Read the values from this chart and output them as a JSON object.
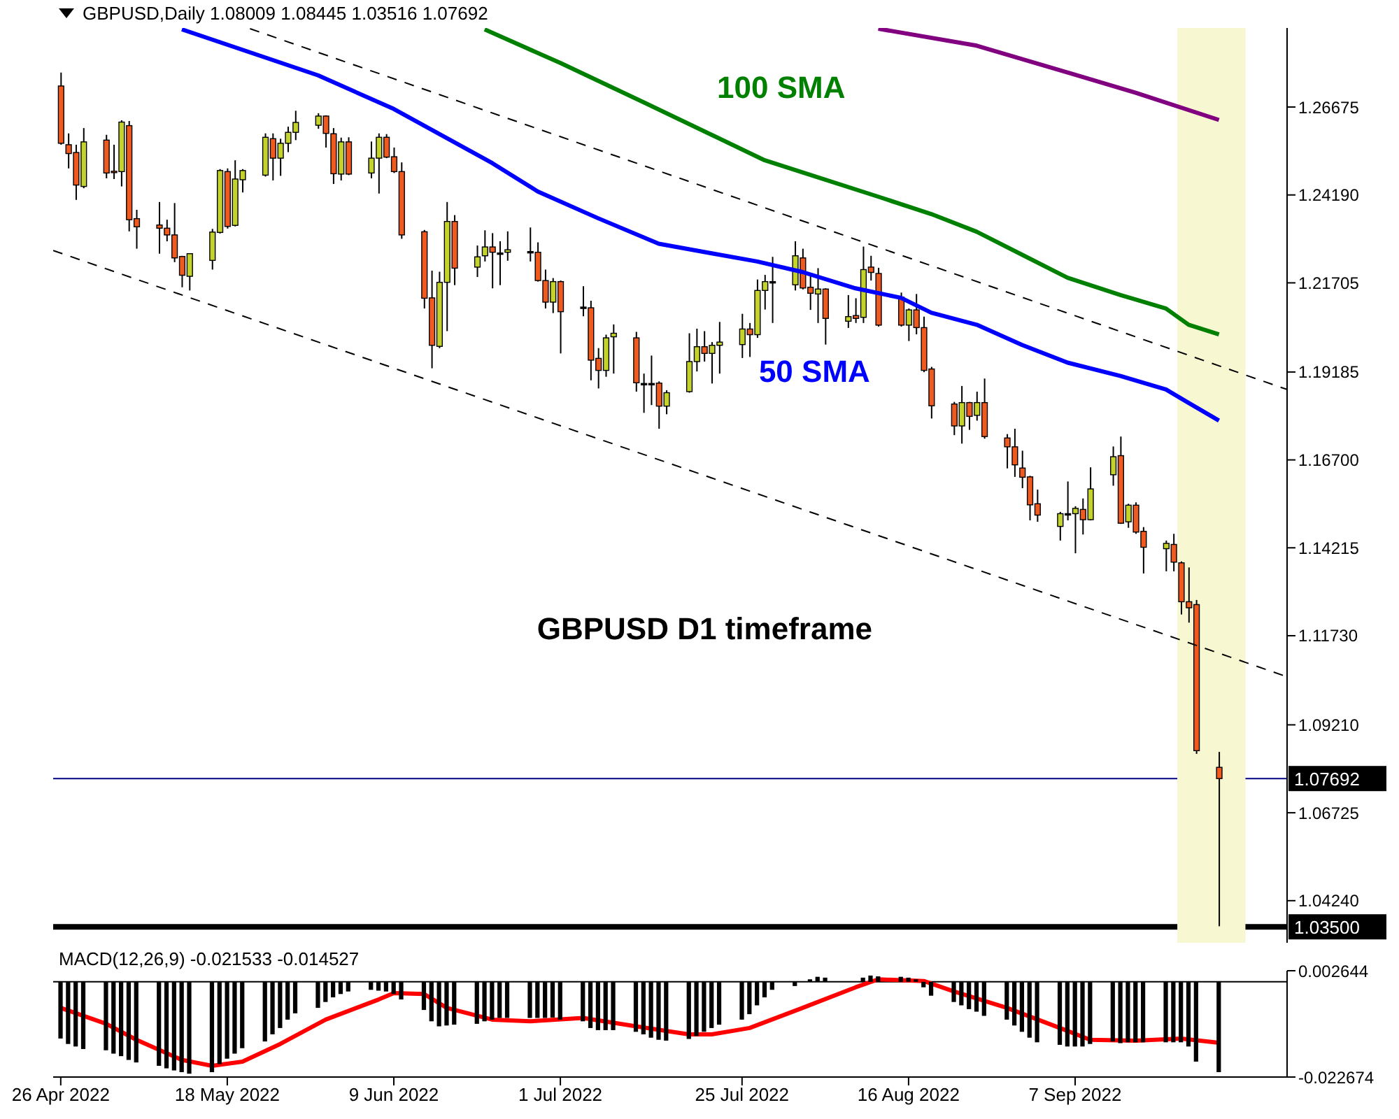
{
  "chart_data": [
    {
      "type": "candlestick",
      "title": "GBPUSD,Daily 1.08009 1.08445 1.03516 1.07692",
      "annotations": [
        "GBPUSD D1 timeframe"
      ],
      "x": [
        "2022-04-26",
        "2022-04-27",
        "2022-04-28",
        "2022-04-29",
        "2022-05-02",
        "2022-05-03",
        "2022-05-04",
        "2022-05-05",
        "2022-05-06",
        "2022-05-09",
        "2022-05-10",
        "2022-05-11",
        "2022-05-12",
        "2022-05-13",
        "2022-05-16",
        "2022-05-17",
        "2022-05-18",
        "2022-05-19",
        "2022-05-20",
        "2022-05-23",
        "2022-05-24",
        "2022-05-25",
        "2022-05-26",
        "2022-05-27",
        "2022-05-30",
        "2022-05-31",
        "2022-06-01",
        "2022-06-02",
        "2022-06-03",
        "2022-06-06",
        "2022-06-07",
        "2022-06-08",
        "2022-06-09",
        "2022-06-10",
        "2022-06-13",
        "2022-06-14",
        "2022-06-15",
        "2022-06-16",
        "2022-06-17",
        "2022-06-20",
        "2022-06-21",
        "2022-06-22",
        "2022-06-23",
        "2022-06-24",
        "2022-06-27",
        "2022-06-28",
        "2022-06-29",
        "2022-06-30",
        "2022-07-01",
        "2022-07-04",
        "2022-07-05",
        "2022-07-06",
        "2022-07-07",
        "2022-07-08",
        "2022-07-11",
        "2022-07-12",
        "2022-07-13",
        "2022-07-14",
        "2022-07-15",
        "2022-07-18",
        "2022-07-19",
        "2022-07-20",
        "2022-07-21",
        "2022-07-22",
        "2022-07-25",
        "2022-07-26",
        "2022-07-27",
        "2022-07-28",
        "2022-07-29",
        "2022-08-01",
        "2022-08-02",
        "2022-08-03",
        "2022-08-04",
        "2022-08-05",
        "2022-08-08",
        "2022-08-09",
        "2022-08-10",
        "2022-08-11",
        "2022-08-12",
        "2022-08-15",
        "2022-08-16",
        "2022-08-17",
        "2022-08-18",
        "2022-08-19",
        "2022-08-22",
        "2022-08-23",
        "2022-08-24",
        "2022-08-25",
        "2022-08-26",
        "2022-08-29",
        "2022-08-30",
        "2022-08-31",
        "2022-09-01",
        "2022-09-02",
        "2022-09-05",
        "2022-09-06",
        "2022-09-07",
        "2022-09-08",
        "2022-09-09",
        "2022-09-12",
        "2022-09-13",
        "2022-09-14",
        "2022-09-15",
        "2022-09-16",
        "2022-09-19",
        "2022-09-20",
        "2022-09-21",
        "2022-09-22",
        "2022-09-23",
        "2022-09-26"
      ],
      "ohlc": [
        [
          1.2727,
          1.2765,
          1.2561,
          1.2565
        ],
        [
          1.2561,
          1.2593,
          1.2494,
          1.2536
        ],
        [
          1.2539,
          1.2561,
          1.2405,
          1.2447
        ],
        [
          1.2443,
          1.2608,
          1.2438,
          1.2569
        ],
        [
          1.2574,
          1.2589,
          1.2466,
          1.2481
        ],
        [
          1.2486,
          1.2561,
          1.2464,
          1.2483
        ],
        [
          1.2485,
          1.263,
          1.2443,
          1.2625
        ],
        [
          1.2615,
          1.2628,
          1.2316,
          1.2349
        ],
        [
          1.2352,
          1.2377,
          1.2267,
          1.2329
        ],
        [
          1.2334,
          1.2399,
          1.2253,
          1.2325
        ],
        [
          1.2325,
          1.2349,
          1.2288,
          1.2306
        ],
        [
          1.2306,
          1.2396,
          1.2229,
          1.2241
        ],
        [
          1.2245,
          1.2247,
          1.2158,
          1.2192
        ],
        [
          1.2189,
          1.2253,
          1.2149,
          1.2253
        ],
        [
          1.2234,
          1.2323,
          1.2208,
          1.2314
        ],
        [
          1.2313,
          1.2492,
          1.231,
          1.2488
        ],
        [
          1.2485,
          1.2494,
          1.2324,
          1.233
        ],
        [
          1.2333,
          1.2517,
          1.233,
          1.2464
        ],
        [
          1.2462,
          1.2492,
          1.2426,
          1.2488
        ],
        [
          1.2475,
          1.2593,
          1.2471,
          1.2582
        ],
        [
          1.2578,
          1.2593,
          1.246,
          1.2523
        ],
        [
          1.2523,
          1.2578,
          1.2473,
          1.2565
        ],
        [
          1.2565,
          1.2612,
          1.254,
          1.2596
        ],
        [
          1.2596,
          1.2657,
          1.2574,
          1.2624
        ],
        [
          1.2616,
          1.265,
          1.2606,
          1.2642
        ],
        [
          1.2642,
          1.2644,
          1.2553,
          1.2593
        ],
        [
          1.2592,
          1.2608,
          1.245,
          1.2479
        ],
        [
          1.2478,
          1.2581,
          1.246,
          1.2569
        ],
        [
          1.2569,
          1.2582,
          1.2475,
          1.2478
        ],
        [
          1.2481,
          1.257,
          1.2466,
          1.2523
        ],
        [
          1.2523,
          1.2593,
          1.2423,
          1.2582
        ],
        [
          1.2582,
          1.2591,
          1.2523,
          1.2526
        ],
        [
          1.2527,
          1.2553,
          1.2481,
          1.2485
        ],
        [
          1.2485,
          1.2511,
          1.2295,
          1.2306
        ],
        [
          1.2315,
          1.232,
          1.2098,
          1.2127
        ],
        [
          1.2128,
          1.2205,
          1.1929,
          1.1994
        ],
        [
          1.1991,
          1.2202,
          1.1986,
          1.2172
        ],
        [
          1.2172,
          1.2399,
          1.2034,
          1.2344
        ],
        [
          1.2344,
          1.2362,
          1.2164,
          1.2212
        ],
        [
          1.2215,
          1.2276,
          1.2187,
          1.2244
        ],
        [
          1.2247,
          1.2319,
          1.2231,
          1.2272
        ],
        [
          1.2272,
          1.2311,
          1.2155,
          1.2257
        ],
        [
          1.2255,
          1.2288,
          1.2164,
          1.2255
        ],
        [
          1.2257,
          1.2316,
          1.2233,
          1.2264
        ],
        [
          1.2259,
          1.2327,
          1.2231,
          1.2259
        ],
        [
          1.2257,
          1.2285,
          1.2174,
          1.2177
        ],
        [
          1.2177,
          1.2208,
          1.2098,
          1.2116
        ],
        [
          1.2116,
          1.2184,
          1.2085,
          1.2174
        ],
        [
          1.2174,
          1.2177,
          1.1971,
          1.2089
        ],
        [
          1.2102,
          1.2161,
          1.2076,
          1.2102
        ],
        [
          1.21,
          1.212,
          1.1895,
          1.1952
        ],
        [
          1.1957,
          1.1986,
          1.1872,
          1.1923
        ],
        [
          1.1923,
          1.2024,
          1.1905,
          1.2015
        ],
        [
          1.2018,
          1.2053,
          1.1914,
          1.2028
        ],
        [
          1.2015,
          1.2032,
          1.1863,
          1.1888
        ],
        [
          1.1886,
          1.1914,
          1.1803,
          1.1886
        ],
        [
          1.1886,
          1.1965,
          1.1825,
          1.1886
        ],
        [
          1.1887,
          1.1892,
          1.1758,
          1.1822
        ],
        [
          1.1822,
          1.1867,
          1.1799,
          1.186
        ],
        [
          1.1863,
          1.2028,
          1.186,
          1.1948
        ],
        [
          1.1948,
          1.2041,
          1.192,
          1.199
        ],
        [
          1.199,
          1.2034,
          1.1948,
          1.1971
        ],
        [
          1.1971,
          1.2003,
          1.1886,
          1.1994
        ],
        [
          1.1994,
          1.206,
          1.1914,
          1.2003
        ],
        [
          1.1996,
          1.2083,
          1.1958,
          1.204
        ],
        [
          1.204,
          1.2057,
          1.1961,
          1.2024
        ],
        [
          1.2024,
          1.218,
          1.2015,
          1.2149
        ],
        [
          1.2149,
          1.2193,
          1.2095,
          1.2174
        ],
        [
          1.2174,
          1.2244,
          1.2057,
          1.2174
        ],
        [
          1.2165,
          1.2288,
          1.2149,
          1.2247
        ],
        [
          1.2241,
          1.2267,
          1.2152,
          1.2156
        ],
        [
          1.2158,
          1.2196,
          1.2094,
          1.2141
        ],
        [
          1.2139,
          1.2212,
          1.2057,
          1.2153
        ],
        [
          1.2153,
          1.2155,
          1.1996,
          1.207
        ],
        [
          1.2062,
          1.2136,
          1.2043,
          1.2075
        ],
        [
          1.2078,
          1.2127,
          1.2057,
          1.207
        ],
        [
          1.2073,
          1.2273,
          1.2057,
          1.2208
        ],
        [
          1.2215,
          1.2247,
          1.2177,
          1.22
        ],
        [
          1.2197,
          1.2213,
          1.2047,
          1.2051
        ],
        [
          1.213,
          1.2143,
          1.2047,
          1.2051
        ],
        [
          1.2051,
          1.2098,
          1.2006,
          1.2094
        ],
        [
          1.2094,
          1.2139,
          1.2025,
          1.2044
        ],
        [
          1.2044,
          1.2075,
          1.1918,
          1.1923
        ],
        [
          1.1927,
          1.1933,
          1.1787,
          1.1823
        ],
        [
          1.1828,
          1.1834,
          1.174,
          1.1766
        ],
        [
          1.1766,
          1.1879,
          1.1716,
          1.1832
        ],
        [
          1.1832,
          1.1834,
          1.1755,
          1.1793
        ],
        [
          1.1796,
          1.1863,
          1.1781,
          1.1832
        ],
        [
          1.1832,
          1.19,
          1.173,
          1.1736
        ],
        [
          1.1732,
          1.1743,
          1.1646,
          1.1707
        ],
        [
          1.1707,
          1.1758,
          1.1622,
          1.1656
        ],
        [
          1.1647,
          1.1696,
          1.159,
          1.1621
        ],
        [
          1.1622,
          1.1625,
          1.1499,
          1.1543
        ],
        [
          1.1546,
          1.1586,
          1.1495,
          1.1514
        ],
        [
          1.1482,
          1.1523,
          1.1442,
          1.1518
        ],
        [
          1.1518,
          1.1609,
          1.1499,
          1.1518
        ],
        [
          1.1518,
          1.1539,
          1.1406,
          1.1533
        ],
        [
          1.153,
          1.1561,
          1.1459,
          1.1501
        ],
        [
          1.1501,
          1.1649,
          1.1499,
          1.1588
        ],
        [
          1.1628,
          1.1708,
          1.1597,
          1.1679
        ],
        [
          1.1682,
          1.1736,
          1.1489,
          1.1491
        ],
        [
          1.1495,
          1.1546,
          1.1478,
          1.1542
        ],
        [
          1.1542,
          1.155,
          1.1461,
          1.1466
        ],
        [
          1.1468,
          1.148,
          1.1349,
          1.1423
        ],
        [
          1.1419,
          1.1442,
          1.1355,
          1.1434
        ],
        [
          1.1431,
          1.1461,
          1.1355,
          1.1381
        ],
        [
          1.1379,
          1.1383,
          1.1233,
          1.1269
        ],
        [
          1.1269,
          1.1366,
          1.121,
          1.1252
        ],
        [
          1.1261,
          1.1274,
          1.0839,
          1.0848
        ],
        [
          1.08009,
          1.08445,
          1.03516,
          1.07692
        ]
      ],
      "colors": [
        "#f05a1e",
        "#f05a1e",
        "#f05a1e",
        "#c3d32b",
        "#f05a1e",
        "#f05a1e",
        "#c3d32b",
        "#f05a1e",
        "#f05a1e",
        "#f05a1e",
        "#f05a1e",
        "#f05a1e",
        "#f05a1e",
        "#c3d32b",
        "#c3d32b",
        "#c3d32b",
        "#f05a1e",
        "#c3d32b",
        "#c3d32b",
        "#c3d32b",
        "#f05a1e",
        "#c3d32b",
        "#c3d32b",
        "#c3d32b",
        "#c3d32b",
        "#f05a1e",
        "#f05a1e",
        "#c3d32b",
        "#f05a1e",
        "#c3d32b",
        "#c3d32b",
        "#f05a1e",
        "#f05a1e",
        "#f05a1e",
        "#f05a1e",
        "#f05a1e",
        "#c3d32b",
        "#c3d32b",
        "#f05a1e",
        "#c3d32b",
        "#c3d32b",
        "#f05a1e",
        "#000000",
        "#c3d32b",
        "#000000",
        "#f05a1e",
        "#f05a1e",
        "#c3d32b",
        "#f05a1e",
        "#000000",
        "#f05a1e",
        "#f05a1e",
        "#c3d32b",
        "#c3d32b",
        "#f05a1e",
        "#000000",
        "#000000",
        "#f05a1e",
        "#c3d32b",
        "#c3d32b",
        "#c3d32b",
        "#f05a1e",
        "#c3d32b",
        "#c3d32b",
        "#c3d32b",
        "#f05a1e",
        "#c3d32b",
        "#c3d32b",
        "#000000",
        "#c3d32b",
        "#f05a1e",
        "#f05a1e",
        "#c3d32b",
        "#f05a1e",
        "#c3d32b",
        "#f05a1e",
        "#c3d32b",
        "#f05a1e",
        "#f05a1e",
        "#f05a1e",
        "#c3d32b",
        "#f05a1e",
        "#f05a1e",
        "#f05a1e",
        "#f05a1e",
        "#c3d32b",
        "#f05a1e",
        "#c3d32b",
        "#f05a1e",
        "#f05a1e",
        "#f05a1e",
        "#f05a1e",
        "#f05a1e",
        "#f05a1e",
        "#c3d32b",
        "#000000",
        "#c3d32b",
        "#f05a1e",
        "#c3d32b",
        "#c3d32b",
        "#f05a1e",
        "#c3d32b",
        "#f05a1e",
        "#f05a1e",
        "#c3d32b",
        "#f05a1e",
        "#f05a1e",
        "#f05a1e",
        "#f05a1e",
        "#f05a1e"
      ],
      "series": [
        {
          "type": "line",
          "name": "50 SMA",
          "color": "#0000ff",
          "x": [
            "2022-05-12",
            "2022-05-30",
            "2022-06-09",
            "2022-06-22",
            "2022-06-28",
            "2022-07-06",
            "2022-07-14",
            "2022-07-21",
            "2022-07-27",
            "2022-08-02",
            "2022-08-09",
            "2022-08-15",
            "2022-08-19",
            "2022-08-25",
            "2022-08-31",
            "2022-09-06",
            "2022-09-13",
            "2022-09-19",
            "2022-09-22",
            "2022-09-26"
          ],
          "values": [
            1.2887,
            1.2757,
            1.2662,
            1.2509,
            1.2429,
            1.2353,
            1.2281,
            1.2254,
            1.2231,
            1.2201,
            1.2155,
            1.2128,
            1.2086,
            1.2052,
            1.1995,
            1.1945,
            1.1907,
            1.1869,
            1.1831,
            1.1781
          ]
        },
        {
          "type": "line",
          "name": "100 SMA",
          "color": "#008000",
          "x": [
            "2022-06-21",
            "2022-07-01",
            "2022-07-12",
            "2022-07-28",
            "2022-08-12",
            "2022-08-19",
            "2022-08-25",
            "2022-08-31",
            "2022-09-06",
            "2022-09-13",
            "2022-09-19",
            "2022-09-22",
            "2022-09-26"
          ],
          "values": [
            1.2887,
            1.2792,
            1.2681,
            1.2517,
            1.2414,
            1.2365,
            1.2315,
            1.225,
            1.2185,
            1.2136,
            1.2098,
            1.2052,
            1.2025
          ]
        },
        {
          "type": "line",
          "color": "#800080",
          "x": [
            "2022-08-12",
            "2022-08-25",
            "2022-09-06",
            "2022-09-15",
            "2022-09-26"
          ],
          "values": [
            1.2889,
            1.2841,
            1.2765,
            1.2708,
            1.2631
          ]
        },
        {
          "type": "line",
          "color": "#000000",
          "line_style": "dashed",
          "x": [
            "2022-05-21",
            "2022-10-05"
          ],
          "values": [
            1.2889,
            1.1869
          ]
        },
        {
          "type": "line",
          "color": "#000000",
          "line_style": "dashed",
          "x": [
            "2022-04-25",
            "2022-10-05"
          ],
          "values": [
            1.2262,
            1.1057
          ]
        }
      ],
      "xlim": [
        "2022-04-25",
        "2022-10-05"
      ],
      "ylim": [
        1.0305,
        1.2891
      ],
      "yticks": [
        1.26675,
        {
          "value": 1.2419,
          "label": "1.24190"
        },
        1.21705,
        1.19185,
        {
          "value": 1.167,
          "label": "1.16700"
        },
        1.14215,
        {
          "value": 1.1173,
          "label": "1.11730"
        },
        {
          "value": 1.0921,
          "label": "1.09210"
        },
        1.06725,
        {
          "value": 1.0424,
          "label": "1.04240"
        }
      ],
      "tick_labels": "y",
      "ref_lines": [
        {
          "axis": "y",
          "value": 1.07692,
          "label": "1.07692",
          "color": "#000080"
        },
        {
          "axis": "y",
          "value": 1.035,
          "label": "1.03500",
          "color": "#000000"
        }
      ],
      "bands": [
        {
          "axis": "x",
          "from": "2022-09-20T12:00",
          "to": "2022-09-29T12:00",
          "color": "#f7f7d2"
        }
      ]
    },
    {
      "type": "bar",
      "title": "MACD(12,26,9) -0.021533 -0.014527",
      "x": [
        "2022-04-26",
        "2022-04-27",
        "2022-04-28",
        "2022-04-29",
        "2022-05-02",
        "2022-05-03",
        "2022-05-04",
        "2022-05-05",
        "2022-05-06",
        "2022-05-09",
        "2022-05-10",
        "2022-05-11",
        "2022-05-12",
        "2022-05-13",
        "2022-05-16",
        "2022-05-17",
        "2022-05-18",
        "2022-05-19",
        "2022-05-20",
        "2022-05-23",
        "2022-05-24",
        "2022-05-25",
        "2022-05-26",
        "2022-05-27",
        "2022-05-30",
        "2022-05-31",
        "2022-06-01",
        "2022-06-02",
        "2022-06-03",
        "2022-06-06",
        "2022-06-07",
        "2022-06-08",
        "2022-06-09",
        "2022-06-10",
        "2022-06-13",
        "2022-06-14",
        "2022-06-15",
        "2022-06-16",
        "2022-06-17",
        "2022-06-20",
        "2022-06-21",
        "2022-06-22",
        "2022-06-23",
        "2022-06-24",
        "2022-06-27",
        "2022-06-28",
        "2022-06-29",
        "2022-06-30",
        "2022-07-01",
        "2022-07-04",
        "2022-07-05",
        "2022-07-06",
        "2022-07-07",
        "2022-07-08",
        "2022-07-11",
        "2022-07-12",
        "2022-07-13",
        "2022-07-14",
        "2022-07-15",
        "2022-07-18",
        "2022-07-19",
        "2022-07-20",
        "2022-07-21",
        "2022-07-22",
        "2022-07-25",
        "2022-07-26",
        "2022-07-27",
        "2022-07-28",
        "2022-07-29",
        "2022-08-01",
        "2022-08-02",
        "2022-08-03",
        "2022-08-04",
        "2022-08-05",
        "2022-08-08",
        "2022-08-09",
        "2022-08-10",
        "2022-08-11",
        "2022-08-12",
        "2022-08-15",
        "2022-08-16",
        "2022-08-17",
        "2022-08-18",
        "2022-08-19",
        "2022-08-22",
        "2022-08-23",
        "2022-08-24",
        "2022-08-25",
        "2022-08-26",
        "2022-08-29",
        "2022-08-30",
        "2022-08-31",
        "2022-09-01",
        "2022-09-02",
        "2022-09-05",
        "2022-09-06",
        "2022-09-07",
        "2022-09-08",
        "2022-09-09",
        "2022-09-12",
        "2022-09-13",
        "2022-09-14",
        "2022-09-15",
        "2022-09-16",
        "2022-09-19",
        "2022-09-20",
        "2022-09-21",
        "2022-09-22",
        "2022-09-23",
        "2022-09-26"
      ],
      "series": [
        {
          "type": "bar",
          "color": "#000000",
          "values": [
            -0.0135,
            -0.0148,
            -0.0154,
            -0.016,
            -0.0163,
            -0.0171,
            -0.0177,
            -0.0186,
            -0.0192,
            -0.02,
            -0.0206,
            -0.0211,
            -0.0215,
            -0.0219,
            -0.0215,
            -0.0196,
            -0.0183,
            -0.0171,
            -0.0158,
            -0.0142,
            -0.0125,
            -0.011,
            -0.009,
            -0.0075,
            -0.0062,
            -0.0048,
            -0.0037,
            -0.0029,
            -0.0023,
            -0.0019,
            -0.0021,
            -0.0023,
            -0.0029,
            -0.0042,
            -0.0067,
            -0.0094,
            -0.0106,
            -0.0104,
            -0.0102,
            -0.01,
            -0.0094,
            -0.009,
            -0.0086,
            -0.0086,
            -0.0086,
            -0.0086,
            -0.0086,
            -0.0085,
            -0.009,
            -0.0094,
            -0.011,
            -0.0115,
            -0.0115,
            -0.0115,
            -0.0119,
            -0.0125,
            -0.0133,
            -0.0138,
            -0.014,
            -0.0136,
            -0.0129,
            -0.0119,
            -0.011,
            -0.0102,
            -0.009,
            -0.0077,
            -0.0056,
            -0.0037,
            -0.0019,
            -0.001,
            null,
            0.0006,
            0.0012,
            0.001,
            null,
            null,
            0.001,
            0.0015,
            0.0013,
            0.0012,
            0.001,
            0.0006,
            -0.0013,
            -0.0033,
            -0.0048,
            -0.0056,
            -0.0065,
            -0.0071,
            -0.0081,
            -0.009,
            -0.0104,
            -0.0119,
            -0.0133,
            -0.0144,
            -0.015,
            -0.0154,
            -0.0154,
            -0.0154,
            -0.0148,
            -0.0142,
            -0.0146,
            -0.0144,
            -0.0144,
            -0.0144,
            -0.0144,
            -0.0144,
            -0.0144,
            -0.0154,
            -0.019,
            -0.0215
          ]
        },
        {
          "type": "line",
          "color": "#ff0000",
          "x": [
            "2022-04-26",
            "2022-05-02",
            "2022-05-06",
            "2022-05-12",
            "2022-05-16",
            "2022-05-20",
            "2022-05-25",
            "2022-05-31",
            "2022-06-07",
            "2022-06-09",
            "2022-06-13",
            "2022-06-16",
            "2022-06-22",
            "2022-06-27",
            "2022-07-04",
            "2022-07-11",
            "2022-07-18",
            "2022-07-21",
            "2022-07-26",
            "2022-08-02",
            "2022-08-09",
            "2022-08-12",
            "2022-08-18",
            "2022-08-22",
            "2022-08-29",
            "2022-09-05",
            "2022-09-09",
            "2022-09-15",
            "2022-09-21",
            "2022-09-26"
          ],
          "values": [
            -0.0062,
            -0.01,
            -0.0138,
            -0.0186,
            -0.02,
            -0.019,
            -0.0148,
            -0.009,
            -0.0042,
            -0.0027,
            -0.0029,
            -0.0062,
            -0.009,
            -0.0094,
            -0.0086,
            -0.0106,
            -0.0125,
            -0.0125,
            -0.011,
            -0.0062,
            -0.0013,
            0.0006,
            0.0002,
            -0.0023,
            -0.0062,
            -0.011,
            -0.0138,
            -0.014,
            -0.0135,
            -0.0145
          ]
        }
      ],
      "xlim": [
        "2022-04-25",
        "2022-10-05"
      ],
      "xticks": [
        {
          "value": "2022-04-26",
          "label": "26 Apr 2022"
        },
        {
          "value": "2022-05-18",
          "label": "18 May 2022"
        },
        {
          "value": "2022-06-09",
          "label": "9 Jun 2022"
        },
        {
          "value": "2022-07-01",
          "label": "1 Jul 2022"
        },
        {
          "value": "2022-07-25",
          "label": "25 Jul 2022"
        },
        {
          "value": "2022-08-16",
          "label": "16 Aug 2022"
        },
        {
          "value": "2022-09-07",
          "label": "7 Sep 2022"
        }
      ],
      "ylim": [
        -0.022674,
        0.002644
      ],
      "yticks": [
        -0.022674,
        0.002644
      ],
      "ref_lines": [
        {
          "axis": "y",
          "value": 0,
          "color": "#000000"
        }
      ]
    }
  ]
}
